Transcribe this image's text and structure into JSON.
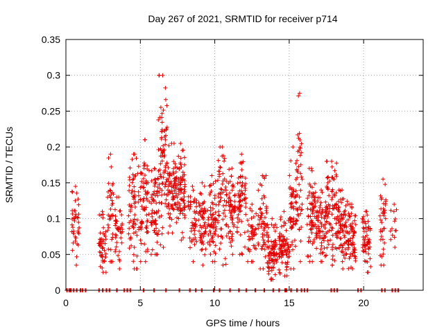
{
  "chart_data": {
    "type": "scatter",
    "title": "Day 267 of 2021, SRMTID for receiver p714",
    "xlabel": "GPS time / hours",
    "ylabel": "SRMTID / TECUs",
    "xlim": [
      0,
      24
    ],
    "ylim": [
      0,
      0.35
    ],
    "grid": true,
    "marker": "+",
    "series_color": "#e00000",
    "x_ticks": [
      0,
      5,
      10,
      15,
      20
    ],
    "x_tick_labels": [
      "0",
      "5",
      "10",
      "15",
      "20"
    ],
    "y_ticks": [
      0,
      0.05,
      0.1,
      0.15,
      0.2,
      0.25,
      0.3,
      0.35
    ],
    "y_tick_labels": [
      "0",
      "0.05",
      "0.1",
      "0.15",
      "0.2",
      "0.25",
      "0.3",
      "0.35"
    ],
    "series": [
      {
        "name": "SRMTID",
        "clusters": [
          {
            "x": [
              0.4,
              0.9
            ],
            "y": [
              0.035,
              0.145
            ],
            "n": 40
          },
          {
            "x": [
              2.2,
              2.7
            ],
            "y": [
              0.025,
              0.11
            ],
            "n": 45
          },
          {
            "x": [
              2.8,
              3.2
            ],
            "y": [
              0.04,
              0.19
            ],
            "n": 35
          },
          {
            "x": [
              3.3,
              3.8
            ],
            "y": [
              0.03,
              0.13
            ],
            "n": 40
          },
          {
            "x": [
              4.2,
              4.9
            ],
            "y": [
              0.03,
              0.19
            ],
            "n": 70
          },
          {
            "x": [
              5.0,
              5.6
            ],
            "y": [
              0.04,
              0.21
            ],
            "n": 70
          },
          {
            "x": [
              5.7,
              6.2
            ],
            "y": [
              0.05,
              0.17
            ],
            "n": 60
          },
          {
            "x": [
              6.2,
              6.8
            ],
            "y": [
              0.06,
              0.3
            ],
            "n": 80
          },
          {
            "x": [
              6.8,
              7.4
            ],
            "y": [
              0.08,
              0.205
            ],
            "n": 70
          },
          {
            "x": [
              7.4,
              8.0
            ],
            "y": [
              0.07,
              0.205
            ],
            "n": 80
          },
          {
            "x": [
              8.2,
              8.8
            ],
            "y": [
              0.04,
              0.145
            ],
            "n": 45
          },
          {
            "x": [
              8.9,
              9.4
            ],
            "y": [
              0.035,
              0.15
            ],
            "n": 55
          },
          {
            "x": [
              9.5,
              10.1
            ],
            "y": [
              0.04,
              0.16
            ],
            "n": 65
          },
          {
            "x": [
              10.2,
              10.8
            ],
            "y": [
              0.035,
              0.2
            ],
            "n": 60
          },
          {
            "x": [
              10.9,
              11.4
            ],
            "y": [
              0.05,
              0.17
            ],
            "n": 55
          },
          {
            "x": [
              11.5,
              12.1
            ],
            "y": [
              0.05,
              0.19
            ],
            "n": 65
          },
          {
            "x": [
              12.2,
              12.8
            ],
            "y": [
              0.04,
              0.12
            ],
            "n": 40
          },
          {
            "x": [
              12.9,
              13.5
            ],
            "y": [
              0.03,
              0.16
            ],
            "n": 55
          },
          {
            "x": [
              13.5,
              14.2
            ],
            "y": [
              0.015,
              0.1
            ],
            "n": 80
          },
          {
            "x": [
              14.3,
              15.0
            ],
            "y": [
              0.02,
              0.11
            ],
            "n": 75
          },
          {
            "x": [
              15.0,
              15.5
            ],
            "y": [
              0.03,
              0.2
            ],
            "n": 55
          },
          {
            "x": [
              15.5,
              15.9
            ],
            "y": [
              0.04,
              0.275
            ],
            "n": 40
          },
          {
            "x": [
              16.2,
              16.8
            ],
            "y": [
              0.04,
              0.17
            ],
            "n": 65
          },
          {
            "x": [
              16.8,
              17.5
            ],
            "y": [
              0.04,
              0.14
            ],
            "n": 75
          },
          {
            "x": [
              17.5,
              18.2
            ],
            "y": [
              0.035,
              0.18
            ],
            "n": 80
          },
          {
            "x": [
              18.2,
              18.9
            ],
            "y": [
              0.03,
              0.14
            ],
            "n": 80
          },
          {
            "x": [
              18.9,
              19.5
            ],
            "y": [
              0.03,
              0.12
            ],
            "n": 65
          },
          {
            "x": [
              19.9,
              20.5
            ],
            "y": [
              0.025,
              0.11
            ],
            "n": 55
          },
          {
            "x": [
              21.1,
              21.5
            ],
            "y": [
              0.035,
              0.155
            ],
            "n": 35
          },
          {
            "x": [
              21.8,
              22.3
            ],
            "y": [
              0.06,
              0.12
            ],
            "n": 12
          }
        ],
        "zero_x": [
          0.05,
          0.2,
          0.3,
          0.5,
          0.7,
          0.95,
          1.1,
          1.3,
          2.2,
          2.45,
          2.7,
          2.9,
          3.4,
          3.9,
          4.1,
          4.3,
          5.2,
          5.9,
          6.7,
          7.6,
          8.3,
          8.7,
          9.1,
          9.9,
          10.3,
          11.0,
          11.6,
          12.1,
          12.7,
          13.3,
          13.9,
          14.3,
          14.7,
          14.8,
          15.1,
          15.5,
          15.8,
          16.0,
          16.2,
          17.8,
          18.0,
          18.2,
          19.6,
          19.8,
          21.2,
          21.4,
          21.9,
          22.1,
          22.3
        ]
      }
    ]
  }
}
